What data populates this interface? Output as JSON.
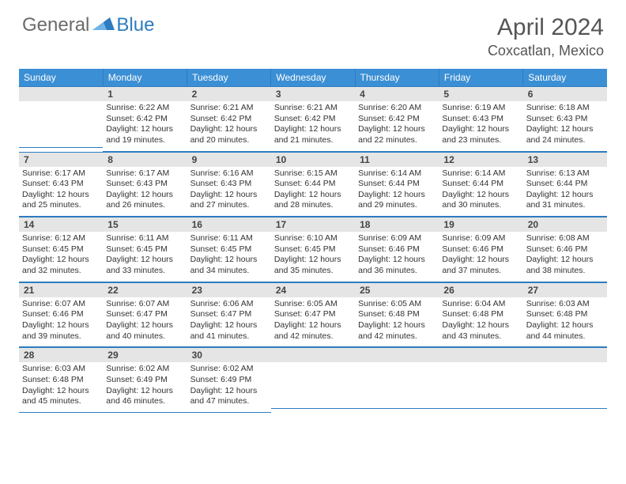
{
  "logo": {
    "part1": "General",
    "part2": "Blue"
  },
  "title": "April 2024",
  "location": "Coxcatlan, Mexico",
  "header_bg": "#3b8fd4",
  "accent": "#2d7cc0",
  "weekdays": [
    "Sunday",
    "Monday",
    "Tuesday",
    "Wednesday",
    "Thursday",
    "Friday",
    "Saturday"
  ],
  "first_weekday_offset": 1,
  "days": [
    {
      "n": 1,
      "sunrise": "6:22 AM",
      "sunset": "6:42 PM",
      "dl": "12 hours and 19 minutes."
    },
    {
      "n": 2,
      "sunrise": "6:21 AM",
      "sunset": "6:42 PM",
      "dl": "12 hours and 20 minutes."
    },
    {
      "n": 3,
      "sunrise": "6:21 AM",
      "sunset": "6:42 PM",
      "dl": "12 hours and 21 minutes."
    },
    {
      "n": 4,
      "sunrise": "6:20 AM",
      "sunset": "6:42 PM",
      "dl": "12 hours and 22 minutes."
    },
    {
      "n": 5,
      "sunrise": "6:19 AM",
      "sunset": "6:43 PM",
      "dl": "12 hours and 23 minutes."
    },
    {
      "n": 6,
      "sunrise": "6:18 AM",
      "sunset": "6:43 PM",
      "dl": "12 hours and 24 minutes."
    },
    {
      "n": 7,
      "sunrise": "6:17 AM",
      "sunset": "6:43 PM",
      "dl": "12 hours and 25 minutes."
    },
    {
      "n": 8,
      "sunrise": "6:17 AM",
      "sunset": "6:43 PM",
      "dl": "12 hours and 26 minutes."
    },
    {
      "n": 9,
      "sunrise": "6:16 AM",
      "sunset": "6:43 PM",
      "dl": "12 hours and 27 minutes."
    },
    {
      "n": 10,
      "sunrise": "6:15 AM",
      "sunset": "6:44 PM",
      "dl": "12 hours and 28 minutes."
    },
    {
      "n": 11,
      "sunrise": "6:14 AM",
      "sunset": "6:44 PM",
      "dl": "12 hours and 29 minutes."
    },
    {
      "n": 12,
      "sunrise": "6:14 AM",
      "sunset": "6:44 PM",
      "dl": "12 hours and 30 minutes."
    },
    {
      "n": 13,
      "sunrise": "6:13 AM",
      "sunset": "6:44 PM",
      "dl": "12 hours and 31 minutes."
    },
    {
      "n": 14,
      "sunrise": "6:12 AM",
      "sunset": "6:45 PM",
      "dl": "12 hours and 32 minutes."
    },
    {
      "n": 15,
      "sunrise": "6:11 AM",
      "sunset": "6:45 PM",
      "dl": "12 hours and 33 minutes."
    },
    {
      "n": 16,
      "sunrise": "6:11 AM",
      "sunset": "6:45 PM",
      "dl": "12 hours and 34 minutes."
    },
    {
      "n": 17,
      "sunrise": "6:10 AM",
      "sunset": "6:45 PM",
      "dl": "12 hours and 35 minutes."
    },
    {
      "n": 18,
      "sunrise": "6:09 AM",
      "sunset": "6:46 PM",
      "dl": "12 hours and 36 minutes."
    },
    {
      "n": 19,
      "sunrise": "6:09 AM",
      "sunset": "6:46 PM",
      "dl": "12 hours and 37 minutes."
    },
    {
      "n": 20,
      "sunrise": "6:08 AM",
      "sunset": "6:46 PM",
      "dl": "12 hours and 38 minutes."
    },
    {
      "n": 21,
      "sunrise": "6:07 AM",
      "sunset": "6:46 PM",
      "dl": "12 hours and 39 minutes."
    },
    {
      "n": 22,
      "sunrise": "6:07 AM",
      "sunset": "6:47 PM",
      "dl": "12 hours and 40 minutes."
    },
    {
      "n": 23,
      "sunrise": "6:06 AM",
      "sunset": "6:47 PM",
      "dl": "12 hours and 41 minutes."
    },
    {
      "n": 24,
      "sunrise": "6:05 AM",
      "sunset": "6:47 PM",
      "dl": "12 hours and 42 minutes."
    },
    {
      "n": 25,
      "sunrise": "6:05 AM",
      "sunset": "6:48 PM",
      "dl": "12 hours and 42 minutes."
    },
    {
      "n": 26,
      "sunrise": "6:04 AM",
      "sunset": "6:48 PM",
      "dl": "12 hours and 43 minutes."
    },
    {
      "n": 27,
      "sunrise": "6:03 AM",
      "sunset": "6:48 PM",
      "dl": "12 hours and 44 minutes."
    },
    {
      "n": 28,
      "sunrise": "6:03 AM",
      "sunset": "6:48 PM",
      "dl": "12 hours and 45 minutes."
    },
    {
      "n": 29,
      "sunrise": "6:02 AM",
      "sunset": "6:49 PM",
      "dl": "12 hours and 46 minutes."
    },
    {
      "n": 30,
      "sunrise": "6:02 AM",
      "sunset": "6:49 PM",
      "dl": "12 hours and 47 minutes."
    }
  ],
  "labels": {
    "sunrise": "Sunrise:",
    "sunset": "Sunset:",
    "daylight": "Daylight:"
  }
}
